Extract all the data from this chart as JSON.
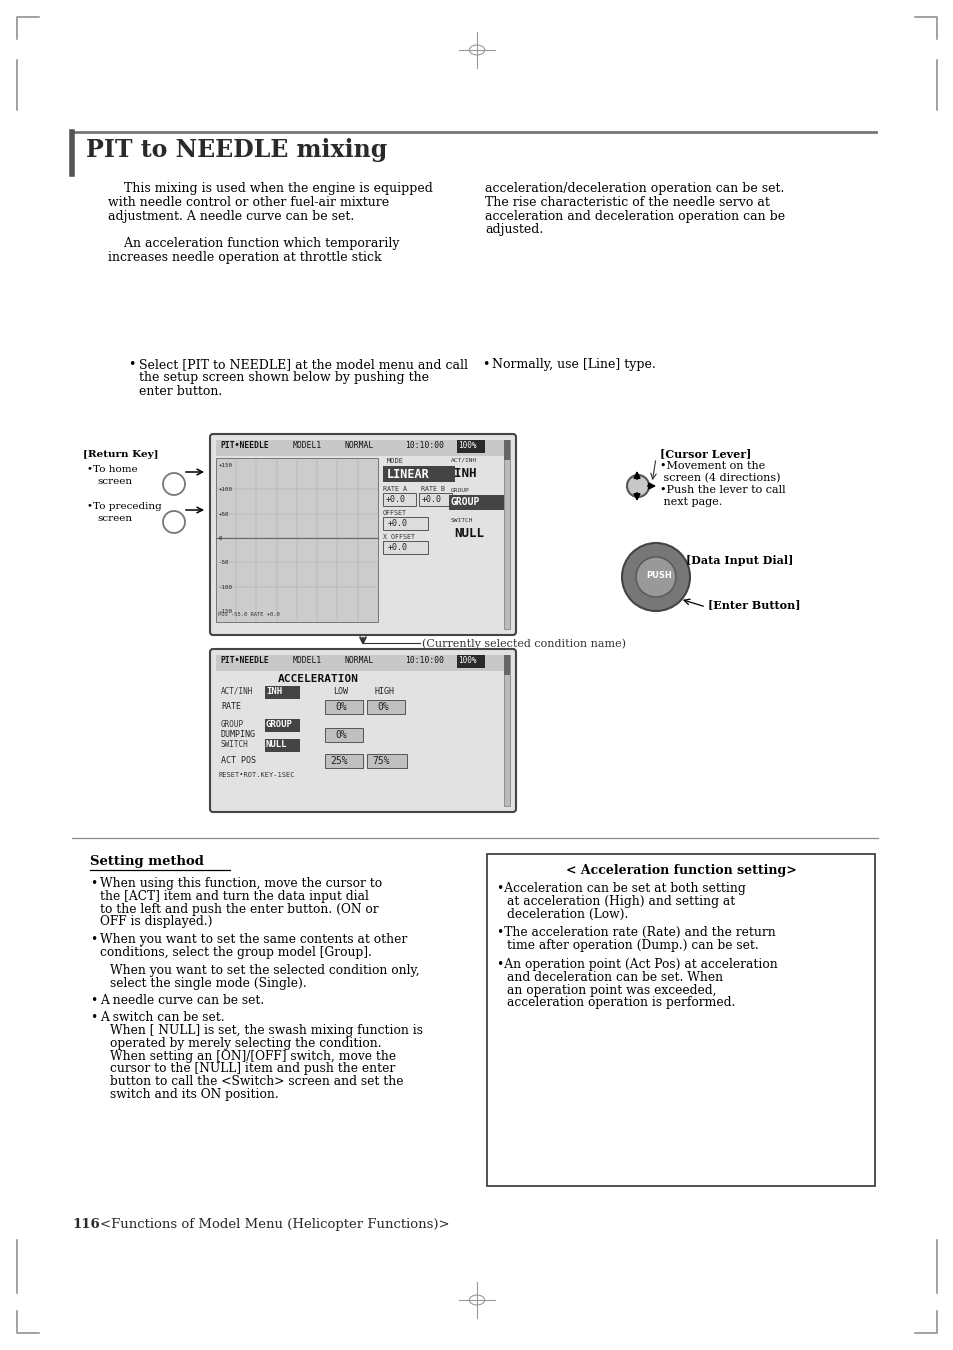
{
  "title": "PIT to NEEDLE mixing",
  "page_number": "116",
  "footer_text": "<Functions of Model Menu (Helicopter Functions)>",
  "bg_color": "#ffffff",
  "body_text_left_lines": [
    "    This mixing is used when the engine is equipped",
    "with needle control or other fuel-air mixture",
    "adjustment. A needle curve can be set.",
    "",
    "    An acceleration function which temporarily",
    "increases needle operation at throttle stick"
  ],
  "body_text_right_lines": [
    "acceleration/deceleration operation can be set.",
    "The rise characteristic of the needle servo at",
    "acceleration and deceleration operation can be",
    "adjusted."
  ],
  "bullet1_lines": [
    "Select [PIT to NEEDLE] at the model menu and call",
    "the setup screen shown below by pushing the",
    "enter button."
  ],
  "bullet2": "Normally, use [Line] type.",
  "return_key_label": "[Return Key]",
  "cursor_lever_label": "[Cursor Lever]",
  "cursor_lever_sub_lines": [
    "•Movement on the",
    " screen (4 directions)",
    "•Push the lever to call",
    " next page."
  ],
  "data_input_label": "[Data Input Dial]",
  "enter_button_label": "[Enter Button]",
  "condition_name_label": "(Currently selected condition name)",
  "setting_method_title": "Setting method",
  "setting_method_bullets": [
    [
      "When using this function, move the cursor to",
      "the [ACT] item and turn the data input dial",
      "to the left and push the enter button. (ON or",
      "OFF is displayed.)"
    ],
    [
      "When you want to set the same contents at other",
      "conditions, select the group model [Group].",
      "When you want to set the selected condition only,",
      "select the single mode (Single)."
    ],
    [
      "A needle curve can be set."
    ],
    [
      "A switch can be set.",
      "When [ NULL] is set, the swash mixing function is",
      "operated by merely selecting the condition.",
      "When setting an [ON]/[OFF] switch, move the",
      "cursor to the [NULL] item and push the enter",
      "button to call the <Switch> screen and set the",
      "switch and its ON position."
    ]
  ],
  "accel_box_title": "< Acceleration function setting>",
  "accel_box_bullets": [
    [
      "•Acceleration can be set at both setting",
      "at acceleration (High) and setting at",
      "deceleration (Low)."
    ],
    [
      "•The acceleration rate (Rate) and the return",
      "time after operation (Dump.) can be set."
    ],
    [
      "•An operation point (Act Pos) at acceleration",
      "and deceleration can be set. When",
      "an operation point was exceeded,",
      "acceleration operation is performed."
    ]
  ]
}
